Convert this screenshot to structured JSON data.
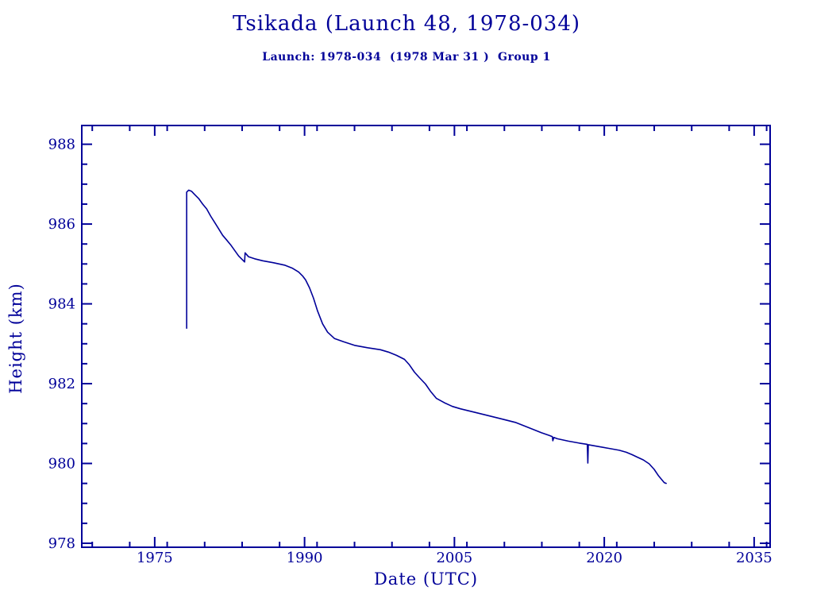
{
  "page": {
    "background": "#ffffff",
    "accent": "#000099"
  },
  "chart_data": {
    "type": "line",
    "title": "Tsikada (Launch 48, 1978-034)",
    "subtitle": "Launch: 1978-034  (1978 Mar 31 )  Group 1",
    "xlabel": "Date (UTC)",
    "ylabel": "Height (km)",
    "xlim": [
      1967.7,
      2036.6
    ],
    "ylim": [
      977.9,
      988.47
    ],
    "x_ticks": [
      1975,
      1990,
      2005,
      2020,
      2035
    ],
    "x_minor_step": 3.75,
    "y_ticks": [
      978,
      980,
      982,
      984,
      986,
      988
    ],
    "y_minor_step": 0.5,
    "grid": false,
    "legend": null,
    "line_color": "#000099",
    "series": [
      {
        "name": "Height (km)",
        "points": [
          [
            1978.2,
            983.39
          ],
          [
            1978.2,
            986.8
          ],
          [
            1978.4,
            986.85
          ],
          [
            1978.7,
            986.82
          ],
          [
            1979.0,
            986.74
          ],
          [
            1979.4,
            986.64
          ],
          [
            1979.8,
            986.5
          ],
          [
            1980.2,
            986.38
          ],
          [
            1980.6,
            986.2
          ],
          [
            1981.0,
            986.04
          ],
          [
            1981.4,
            985.88
          ],
          [
            1981.8,
            985.72
          ],
          [
            1982.2,
            985.6
          ],
          [
            1982.6,
            985.48
          ],
          [
            1983.0,
            985.34
          ],
          [
            1983.4,
            985.2
          ],
          [
            1983.8,
            985.1
          ],
          [
            1984.0,
            985.05
          ],
          [
            1984.05,
            985.28
          ],
          [
            1984.4,
            985.18
          ],
          [
            1985.0,
            985.13
          ],
          [
            1985.8,
            985.08
          ],
          [
            1986.9,
            985.03
          ],
          [
            1988.0,
            984.97
          ],
          [
            1988.8,
            984.89
          ],
          [
            1989.4,
            984.8
          ],
          [
            1989.8,
            984.7
          ],
          [
            1990.1,
            984.6
          ],
          [
            1990.5,
            984.4
          ],
          [
            1990.9,
            984.14
          ],
          [
            1991.3,
            983.82
          ],
          [
            1991.8,
            983.5
          ],
          [
            1992.3,
            983.29
          ],
          [
            1993.0,
            983.13
          ],
          [
            1993.9,
            983.05
          ],
          [
            1995.0,
            982.96
          ],
          [
            1996.3,
            982.9
          ],
          [
            1997.6,
            982.85
          ],
          [
            1998.4,
            982.79
          ],
          [
            1999.2,
            982.71
          ],
          [
            2000.0,
            982.61
          ],
          [
            2000.5,
            982.47
          ],
          [
            2001.0,
            982.29
          ],
          [
            2001.5,
            982.15
          ],
          [
            2002.1,
            981.99
          ],
          [
            2002.6,
            981.81
          ],
          [
            2003.2,
            981.63
          ],
          [
            2004.0,
            981.52
          ],
          [
            2004.8,
            981.43
          ],
          [
            2005.6,
            981.37
          ],
          [
            2006.9,
            981.29
          ],
          [
            2008.2,
            981.21
          ],
          [
            2009.8,
            981.11
          ],
          [
            2011.1,
            981.03
          ],
          [
            2011.9,
            980.95
          ],
          [
            2012.9,
            980.85
          ],
          [
            2013.7,
            980.77
          ],
          [
            2014.5,
            980.7
          ],
          [
            2014.8,
            980.67
          ],
          [
            2014.85,
            980.57
          ],
          [
            2014.95,
            980.65
          ],
          [
            2015.3,
            980.62
          ],
          [
            2016.4,
            980.56
          ],
          [
            2017.5,
            980.51
          ],
          [
            2018.3,
            980.48
          ],
          [
            2018.35,
            980.01
          ],
          [
            2018.4,
            980.47
          ],
          [
            2019.3,
            980.43
          ],
          [
            2020.4,
            980.38
          ],
          [
            2021.5,
            980.33
          ],
          [
            2022.2,
            980.28
          ],
          [
            2022.8,
            980.22
          ],
          [
            2023.3,
            980.16
          ],
          [
            2023.9,
            980.09
          ],
          [
            2024.5,
            979.99
          ],
          [
            2025.0,
            979.85
          ],
          [
            2025.4,
            979.7
          ],
          [
            2025.8,
            979.58
          ],
          [
            2026.0,
            979.52
          ],
          [
            2026.2,
            979.5
          ]
        ]
      }
    ]
  }
}
